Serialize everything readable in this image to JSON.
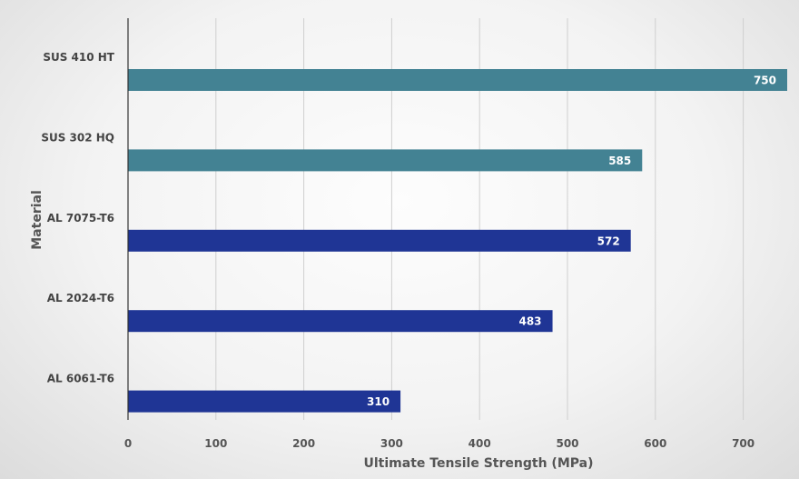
{
  "chart_data": {
    "type": "bar",
    "orientation": "horizontal",
    "categories": [
      "SUS 410 HT",
      "SUS 302 HQ",
      "AL 7075-T6",
      "AL 2024-T6",
      "AL 6061-T6"
    ],
    "values": [
      750,
      585,
      572,
      483,
      310
    ],
    "bar_colors": [
      "#438293",
      "#438293",
      "#1f3595",
      "#1f3595",
      "#1f3595"
    ],
    "xlabel": "Ultimate Tensile Strength (MPa)",
    "ylabel": "Material",
    "xlim": [
      0,
      750
    ],
    "x_ticks": [
      0,
      100,
      200,
      300,
      400,
      500,
      600,
      700
    ],
    "grid": "vertical",
    "data_labels": "inside-end",
    "legend": "none"
  }
}
